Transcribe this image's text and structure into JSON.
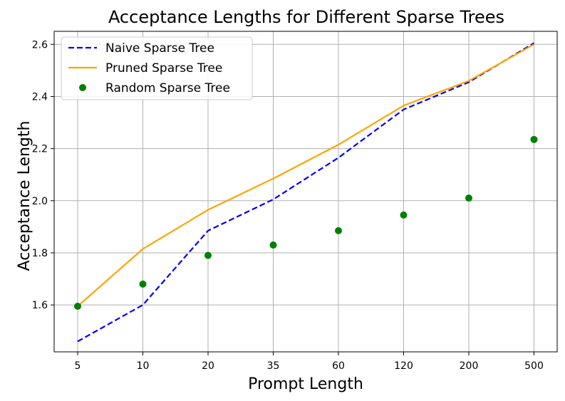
{
  "chart_data": {
    "type": "line",
    "title": "Acceptance Lengths for Different Sparse Trees",
    "xlabel": "Prompt Length",
    "ylabel": "Acceptance Length",
    "categories": [
      "5",
      "10",
      "20",
      "35",
      "60",
      "120",
      "200",
      "500"
    ],
    "ylim": [
      1.42,
      2.65
    ],
    "yticks": [
      "1.6",
      "1.8",
      "2.0",
      "2.2",
      "2.4",
      "2.6"
    ],
    "grid": true,
    "legend_position": "top-left",
    "series": [
      {
        "name": "Naive Sparse Tree",
        "style": "dashed",
        "kind": "line",
        "color": "#0000ff",
        "values": [
          1.46,
          1.6,
          1.885,
          2.005,
          2.165,
          2.35,
          2.455,
          2.605
        ]
      },
      {
        "name": "Pruned Sparse Tree",
        "style": "solid",
        "kind": "line",
        "color": "#ffa500",
        "values": [
          1.595,
          1.815,
          1.965,
          2.085,
          2.215,
          2.365,
          2.46,
          2.6
        ]
      },
      {
        "name": "Random Sparse Tree",
        "style": "marker",
        "kind": "scatter",
        "color": "#008000",
        "values": [
          1.595,
          1.68,
          1.79,
          1.83,
          1.885,
          1.945,
          2.01,
          2.235
        ]
      }
    ]
  }
}
